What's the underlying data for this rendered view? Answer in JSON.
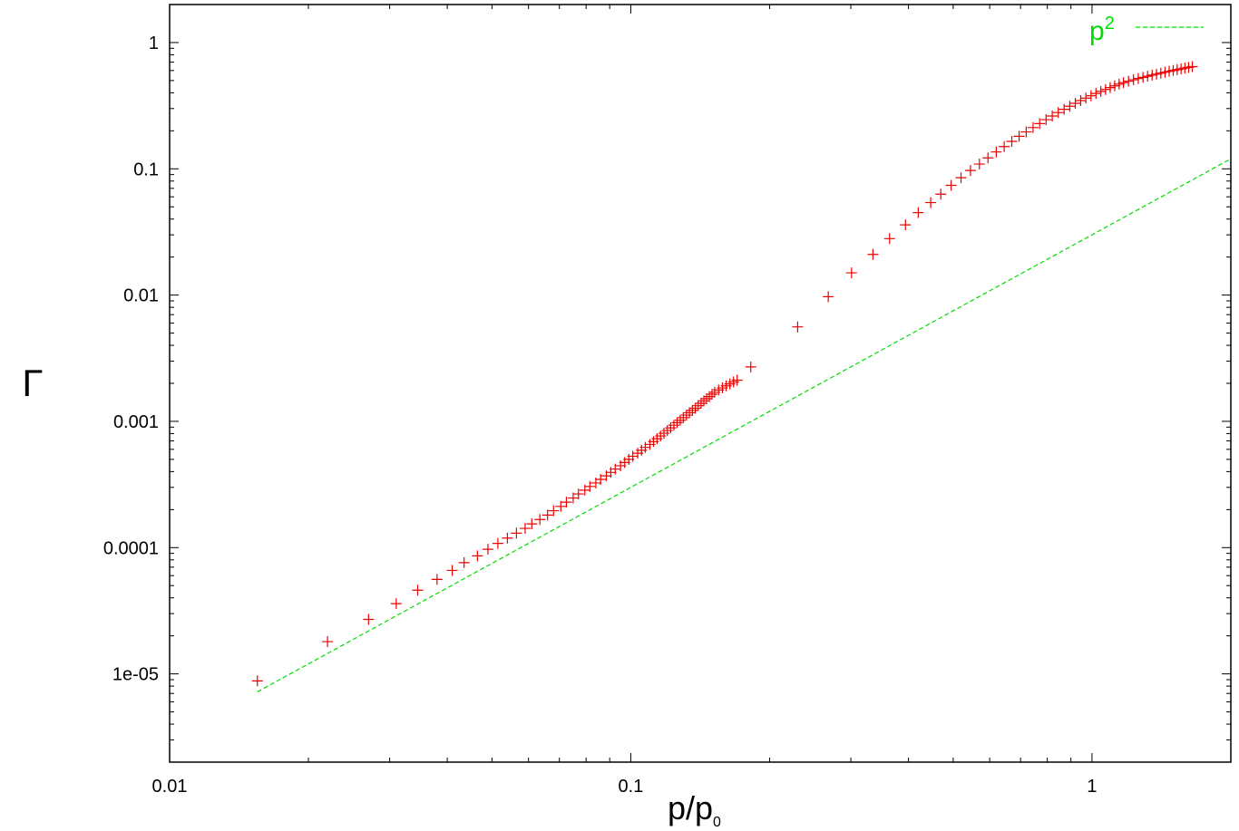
{
  "chart_data": {
    "type": "scatter",
    "xscale": "log",
    "yscale": "log",
    "xlim": [
      0.01,
      2
    ],
    "ylim": [
      2e-06,
      2
    ],
    "xlabel": {
      "base": "p/p",
      "sub": "0"
    },
    "ylabel": "Γ",
    "grid": false,
    "xticks": [
      {
        "value": 0.01,
        "label": "0.01"
      },
      {
        "value": 0.1,
        "label": "0.1"
      },
      {
        "value": 1,
        "label": "1"
      }
    ],
    "yticks": [
      {
        "value": 1,
        "label": "1"
      },
      {
        "value": 0.1,
        "label": "0.1"
      },
      {
        "value": 0.01,
        "label": "0.01"
      },
      {
        "value": 0.001,
        "label": "0.001"
      },
      {
        "value": 0.0001,
        "label": "0.0001"
      },
      {
        "value": 1e-05,
        "label": "1e-05"
      }
    ],
    "series": [
      {
        "style": "plus-markers",
        "color": "#ee0000",
        "points": [
          [
            0.0155,
            8.8e-06
          ],
          [
            0.022,
            1.8e-05
          ],
          [
            0.027,
            2.7e-05
          ],
          [
            0.031,
            3.6e-05
          ],
          [
            0.0345,
            4.6e-05
          ],
          [
            0.038,
            5.6e-05
          ],
          [
            0.041,
            6.6e-05
          ],
          [
            0.0435,
            7.6e-05
          ],
          [
            0.0465,
            8.6e-05
          ],
          [
            0.049,
            9.7e-05
          ],
          [
            0.0515,
            0.000108
          ],
          [
            0.054,
            0.000119
          ],
          [
            0.0565,
            0.00013
          ],
          [
            0.059,
            0.000142
          ],
          [
            0.061,
            0.000154
          ],
          [
            0.0635,
            0.000167
          ],
          [
            0.066,
            0.000181
          ],
          [
            0.068,
            0.000196
          ],
          [
            0.0705,
            0.000212
          ],
          [
            0.0725,
            0.000229
          ],
          [
            0.075,
            0.000247
          ],
          [
            0.077,
            0.000266
          ],
          [
            0.0795,
            0.000285
          ],
          [
            0.0815,
            0.000305
          ],
          [
            0.084,
            0.000325
          ],
          [
            0.086,
            0.000347
          ],
          [
            0.0885,
            0.00037
          ],
          [
            0.0905,
            0.000394
          ],
          [
            0.0925,
            0.000419
          ],
          [
            0.095,
            0.000445
          ],
          [
            0.097,
            0.000472
          ],
          [
            0.099,
            0.0005
          ],
          [
            0.101,
            0.000529
          ],
          [
            0.1035,
            0.000559
          ],
          [
            0.1055,
            0.00059
          ],
          [
            0.1075,
            0.000622
          ],
          [
            0.11,
            0.000656
          ],
          [
            0.112,
            0.000691
          ],
          [
            0.114,
            0.000728
          ],
          [
            0.116,
            0.000766
          ],
          [
            0.118,
            0.000805
          ],
          [
            0.12,
            0.000846
          ],
          [
            0.122,
            0.000888
          ],
          [
            0.124,
            0.000932
          ],
          [
            0.126,
            0.000977
          ],
          [
            0.128,
            0.00102
          ],
          [
            0.13,
            0.00107
          ],
          [
            0.132,
            0.00112
          ],
          [
            0.134,
            0.00117
          ],
          [
            0.136,
            0.00122
          ],
          [
            0.138,
            0.00127
          ],
          [
            0.14,
            0.00133
          ],
          [
            0.142,
            0.00139
          ],
          [
            0.144,
            0.00145
          ],
          [
            0.146,
            0.00151
          ],
          [
            0.148,
            0.00157
          ],
          [
            0.15,
            0.00164
          ],
          [
            0.152,
            0.0017
          ],
          [
            0.155,
            0.00177
          ],
          [
            0.158,
            0.00184
          ],
          [
            0.161,
            0.00191
          ],
          [
            0.164,
            0.00198
          ],
          [
            0.167,
            0.00205
          ],
          [
            0.17,
            0.00212
          ],
          [
            0.182,
            0.0027
          ],
          [
            0.23,
            0.0056
          ],
          [
            0.268,
            0.0097
          ],
          [
            0.301,
            0.015
          ],
          [
            0.335,
            0.021
          ],
          [
            0.364,
            0.028
          ],
          [
            0.394,
            0.036
          ],
          [
            0.42,
            0.045
          ],
          [
            0.447,
            0.054
          ],
          [
            0.47,
            0.063
          ],
          [
            0.495,
            0.074
          ],
          [
            0.52,
            0.085
          ],
          [
            0.545,
            0.097
          ],
          [
            0.57,
            0.109
          ],
          [
            0.595,
            0.122
          ],
          [
            0.62,
            0.136
          ],
          [
            0.645,
            0.15
          ],
          [
            0.67,
            0.165
          ],
          [
            0.695,
            0.181
          ],
          [
            0.72,
            0.196
          ],
          [
            0.745,
            0.212
          ],
          [
            0.77,
            0.228
          ],
          [
            0.795,
            0.245
          ],
          [
            0.82,
            0.262
          ],
          [
            0.845,
            0.279
          ],
          [
            0.87,
            0.296
          ],
          [
            0.895,
            0.313
          ],
          [
            0.92,
            0.33
          ],
          [
            0.945,
            0.347
          ],
          [
            0.97,
            0.363
          ],
          [
            0.995,
            0.379
          ],
          [
            1.02,
            0.395
          ],
          [
            1.045,
            0.41
          ],
          [
            1.07,
            0.425
          ],
          [
            1.095,
            0.44
          ],
          [
            1.12,
            0.454
          ],
          [
            1.145,
            0.468
          ],
          [
            1.17,
            0.481
          ],
          [
            1.2,
            0.494
          ],
          [
            1.23,
            0.507
          ],
          [
            1.26,
            0.519
          ],
          [
            1.29,
            0.53
          ],
          [
            1.32,
            0.541
          ],
          [
            1.35,
            0.552
          ],
          [
            1.38,
            0.562
          ],
          [
            1.41,
            0.572
          ],
          [
            1.44,
            0.582
          ],
          [
            1.47,
            0.592
          ],
          [
            1.5,
            0.601
          ],
          [
            1.53,
            0.61
          ],
          [
            1.56,
            0.619
          ],
          [
            1.59,
            0.628
          ],
          [
            1.62,
            0.636
          ],
          [
            1.65,
            0.645
          ]
        ]
      },
      {
        "name": "p",
        "name_sup": "2",
        "style": "dashed-line",
        "color": "#00dd00",
        "function": "0.03 * p^2",
        "x_range": [
          0.0155,
          2
        ]
      }
    ],
    "legend": {
      "position": "top-right"
    }
  }
}
